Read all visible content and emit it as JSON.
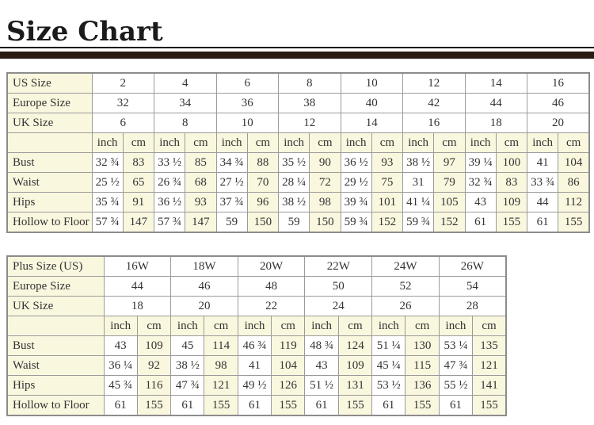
{
  "page": {
    "title": "Size Chart"
  },
  "units": {
    "inch": "inch",
    "cm": "cm"
  },
  "colors": {
    "cream_cell": "#FAF7DF",
    "divider_bar": "#2A1C12",
    "table_border": "#9B9B9B",
    "text": "#333333"
  },
  "regular_table": {
    "size_rows": [
      {
        "label": "US Size",
        "values": [
          "2",
          "4",
          "6",
          "8",
          "10",
          "12",
          "14",
          "16"
        ]
      },
      {
        "label": "Europe Size",
        "values": [
          "32",
          "34",
          "36",
          "38",
          "40",
          "42",
          "44",
          "46"
        ]
      },
      {
        "label": "UK Size",
        "values": [
          "6",
          "8",
          "10",
          "12",
          "14",
          "16",
          "18",
          "20"
        ]
      }
    ],
    "measure_rows": [
      {
        "label": "Bust",
        "values": [
          "32 ¾",
          "83",
          "33 ½",
          "85",
          "34 ¾",
          "88",
          "35 ½",
          "90",
          "36 ½",
          "93",
          "38 ½",
          "97",
          "39 ¼",
          "100",
          "41",
          "104"
        ]
      },
      {
        "label": "Waist",
        "values": [
          "25 ½",
          "65",
          "26 ¾",
          "68",
          "27 ½",
          "70",
          "28 ¼",
          "72",
          "29 ½",
          "75",
          "31",
          "79",
          "32 ¾",
          "83",
          "33 ¾",
          "86"
        ]
      },
      {
        "label": "Hips",
        "values": [
          "35 ¾",
          "91",
          "36 ½",
          "93",
          "37 ¾",
          "96",
          "38 ½",
          "98",
          "39 ¾",
          "101",
          "41 ¼",
          "105",
          "43",
          "109",
          "44",
          "112"
        ]
      },
      {
        "label": "Hollow to Floor",
        "values": [
          "57 ¾",
          "147",
          "57 ¾",
          "147",
          "59",
          "150",
          "59",
          "150",
          "59 ¾",
          "152",
          "59 ¾",
          "152",
          "61",
          "155",
          "61",
          "155"
        ]
      }
    ]
  },
  "plus_table": {
    "size_rows": [
      {
        "label": "Plus Size (US)",
        "values": [
          "16W",
          "18W",
          "20W",
          "22W",
          "24W",
          "26W"
        ]
      },
      {
        "label": "Europe Size",
        "values": [
          "44",
          "46",
          "48",
          "50",
          "52",
          "54"
        ]
      },
      {
        "label": "UK Size",
        "values": [
          "18",
          "20",
          "22",
          "24",
          "26",
          "28"
        ]
      }
    ],
    "measure_rows": [
      {
        "label": "Bust",
        "values": [
          "43",
          "109",
          "45",
          "114",
          "46 ¾",
          "119",
          "48 ¾",
          "124",
          "51 ¼",
          "130",
          "53 ¼",
          "135"
        ]
      },
      {
        "label": "Waist",
        "values": [
          "36 ¼",
          "92",
          "38 ½",
          "98",
          "41",
          "104",
          "43",
          "109",
          "45 ¼",
          "115",
          "47 ¾",
          "121"
        ]
      },
      {
        "label": "Hips",
        "values": [
          "45 ¾",
          "116",
          "47 ¾",
          "121",
          "49 ½",
          "126",
          "51 ½",
          "131",
          "53 ½",
          "136",
          "55 ½",
          "141"
        ]
      },
      {
        "label": "Hollow to Floor",
        "values": [
          "61",
          "155",
          "61",
          "155",
          "61",
          "155",
          "61",
          "155",
          "61",
          "155",
          "61",
          "155"
        ]
      }
    ]
  }
}
